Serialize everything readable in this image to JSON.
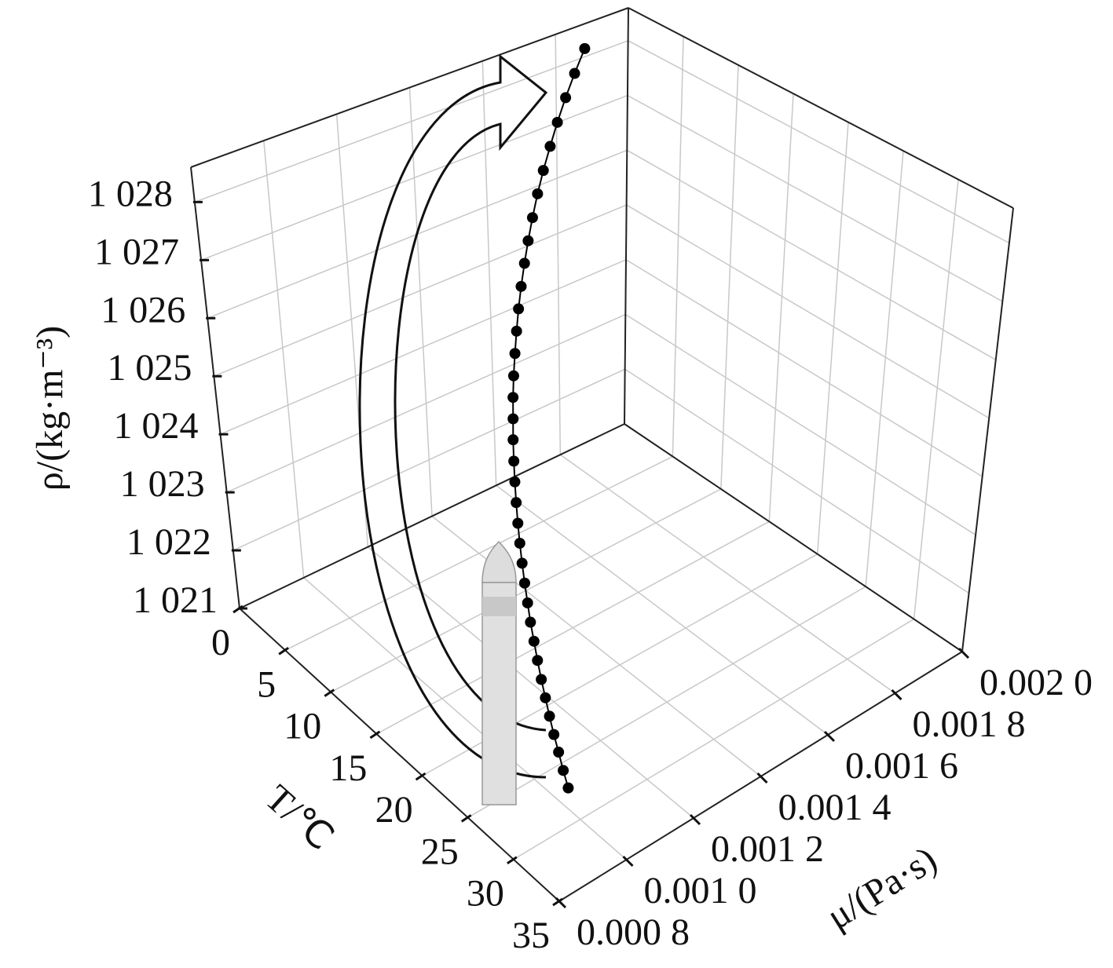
{
  "chart_data": {
    "type": "line3d",
    "xlabel": "T/℃",
    "ylabel": "μ/(Pa·s)",
    "zlabel": "ρ/(kg·m⁻³)",
    "xlim": [
      0,
      35
    ],
    "xticks": [
      0,
      5,
      10,
      15,
      20,
      25,
      30,
      35
    ],
    "ylim": [
      0.0008,
      0.002
    ],
    "yticks": [
      {
        "value": 0.0008,
        "label": "0.000 8"
      },
      {
        "value": 0.001,
        "label": "0.001 0"
      },
      {
        "value": 0.0012,
        "label": "0.001 2"
      },
      {
        "value": 0.0014,
        "label": "0.001 4"
      },
      {
        "value": 0.0016,
        "label": "0.001 6"
      },
      {
        "value": 0.0018,
        "label": "0.001 8"
      },
      {
        "value": 0.002,
        "label": "0.002 0"
      }
    ],
    "zlim": [
      1021,
      1028.6
    ],
    "zticks": [
      {
        "value": 1021,
        "label": "1 021"
      },
      {
        "value": 1022,
        "label": "1 022"
      },
      {
        "value": 1023,
        "label": "1 023"
      },
      {
        "value": 1024,
        "label": "1 024"
      },
      {
        "value": 1025,
        "label": "1 025"
      },
      {
        "value": 1026,
        "label": "1 026"
      },
      {
        "value": 1027,
        "label": "1 027"
      },
      {
        "value": 1028,
        "label": "1 028"
      }
    ],
    "grid": true,
    "series": [
      {
        "color": "#000000",
        "x": [
          0,
          1,
          2,
          3,
          4,
          5,
          6,
          7,
          8,
          9,
          10,
          11,
          12,
          13,
          14,
          15,
          16,
          17,
          18,
          19,
          20,
          21,
          22,
          23,
          24,
          25,
          26,
          27,
          28,
          29,
          30,
          31,
          32,
          33,
          34,
          35
        ],
        "y": [
          0.00188,
          0.001822,
          0.001767,
          0.001714,
          0.001664,
          0.001615,
          0.001569,
          0.001525,
          0.001483,
          0.001443,
          0.001404,
          0.001367,
          0.001332,
          0.001298,
          0.001265,
          0.001234,
          0.001205,
          0.001176,
          0.001149,
          0.001123,
          0.001098,
          0.001074,
          0.001051,
          0.001029,
          0.001008,
          0.000988,
          0.000968,
          0.00095,
          0.000932,
          0.000915,
          0.000899,
          0.000883,
          0.000868,
          0.000854,
          0.00084,
          0.000827
        ],
        "values": [
          1028.15,
          1027.95,
          1027.76,
          1027.56,
          1027.37,
          1027.18,
          1027.0,
          1026.81,
          1026.63,
          1026.46,
          1026.28,
          1026.11,
          1025.94,
          1025.77,
          1025.6,
          1025.44,
          1025.28,
          1025.13,
          1024.97,
          1024.82,
          1024.67,
          1024.52,
          1024.38,
          1024.24,
          1024.1,
          1023.96,
          1023.83,
          1023.7,
          1023.57,
          1023.44,
          1023.32,
          1023.2,
          1023.08,
          1022.97,
          1022.85,
          1022.74
        ]
      }
    ]
  }
}
